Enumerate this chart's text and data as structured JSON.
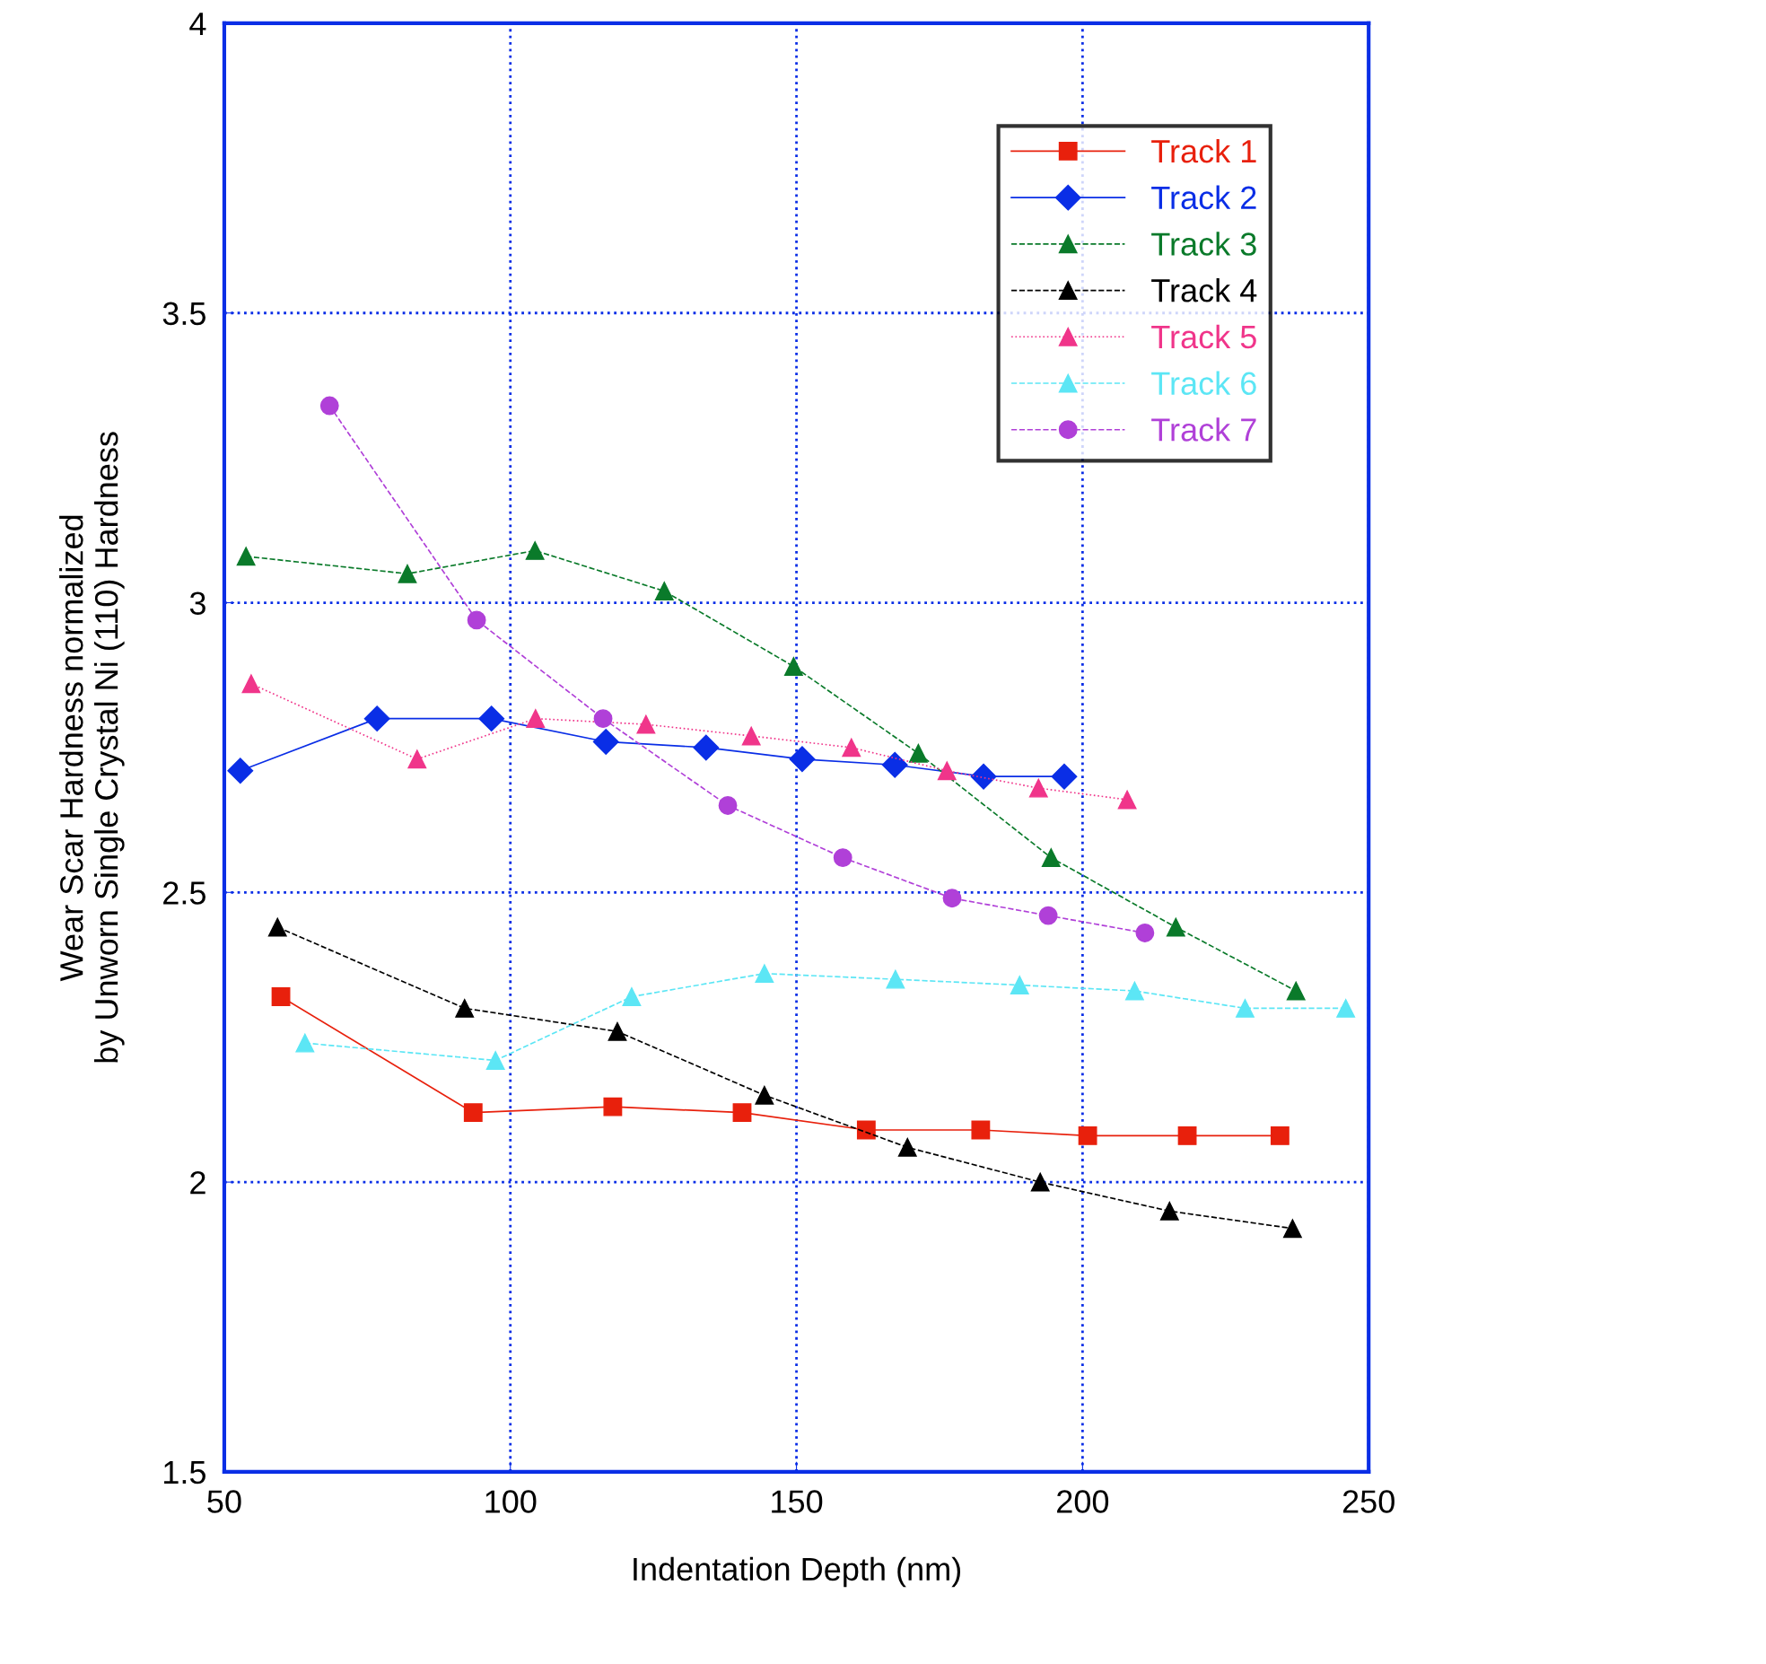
{
  "chart_data": {
    "type": "line",
    "xlabel": "Indentation Depth (nm)",
    "ylabel": "Wear Scar Hardness normalized\nby Unworn Single Crystal Ni (110) Hardness",
    "xlim": [
      50,
      250
    ],
    "xticks": [
      50,
      100,
      150,
      200,
      250
    ],
    "ylim": [
      1.5,
      4
    ],
    "yticks": [
      1.5,
      2,
      2.5,
      3,
      3.5,
      4
    ],
    "grid": true,
    "legend": "top right",
    "series": [
      {
        "name": "Track 1",
        "color": "#e8200c",
        "marker": "square",
        "line_style": "solid",
        "x": [
          59.9,
          93.5,
          117.9,
          140.5,
          162.2,
          182.2,
          200.9,
          218.3,
          234.5
        ],
        "values": [
          2.32,
          2.12,
          2.13,
          2.12,
          2.09,
          2.09,
          2.08,
          2.08,
          2.08
        ]
      },
      {
        "name": "Track 2",
        "color": "#0a2ee6",
        "marker": "diamond",
        "line_style": "solid",
        "x": [
          52.8,
          76.7,
          96.7,
          116.7,
          134.2,
          151.0,
          167.2,
          182.7,
          196.8
        ],
        "values": [
          2.71,
          2.8,
          2.8,
          2.76,
          2.75,
          2.73,
          2.72,
          2.7,
          2.7
        ]
      },
      {
        "name": "Track 3",
        "color": "#0a7a2a",
        "marker": "triangle",
        "line_style": "dashed",
        "x": [
          53.8,
          82.0,
          104.3,
          126.9,
          149.5,
          171.3,
          194.5,
          216.3,
          237.3
        ],
        "values": [
          3.08,
          3.05,
          3.09,
          3.02,
          2.89,
          2.74,
          2.56,
          2.44,
          2.33
        ]
      },
      {
        "name": "Track 4",
        "color": "#000000",
        "marker": "triangle",
        "line_style": "dashed",
        "x": [
          59.3,
          92.0,
          118.7,
          144.4,
          169.4,
          192.6,
          215.2,
          236.7
        ],
        "values": [
          2.44,
          2.3,
          2.26,
          2.15,
          2.06,
          2.0,
          1.95,
          1.92
        ]
      },
      {
        "name": "Track 5",
        "color": "#f0358a",
        "marker": "triangle",
        "line_style": "dotted",
        "x": [
          54.7,
          83.7,
          104.4,
          123.7,
          142.1,
          159.6,
          176.3,
          192.3,
          207.8
        ],
        "values": [
          2.86,
          2.73,
          2.8,
          2.79,
          2.77,
          2.75,
          2.71,
          2.68,
          2.66
        ]
      },
      {
        "name": "Track 6",
        "color": "#5ce6f5",
        "marker": "triangle",
        "line_style": "dashed",
        "x": [
          64.1,
          97.4,
          121.2,
          144.4,
          167.3,
          189.0,
          209.1,
          228.4,
          246.0
        ],
        "values": [
          2.24,
          2.21,
          2.32,
          2.36,
          2.35,
          2.34,
          2.33,
          2.3,
          2.3
        ]
      },
      {
        "name": "Track 7",
        "color": "#b040d8",
        "marker": "circle",
        "line_style": "dashed",
        "x": [
          68.4,
          94.1,
          116.2,
          138.0,
          158.1,
          177.2,
          194.0,
          210.9
        ],
        "values": [
          3.34,
          2.97,
          2.8,
          2.65,
          2.56,
          2.49,
          2.46,
          2.43
        ]
      }
    ]
  }
}
